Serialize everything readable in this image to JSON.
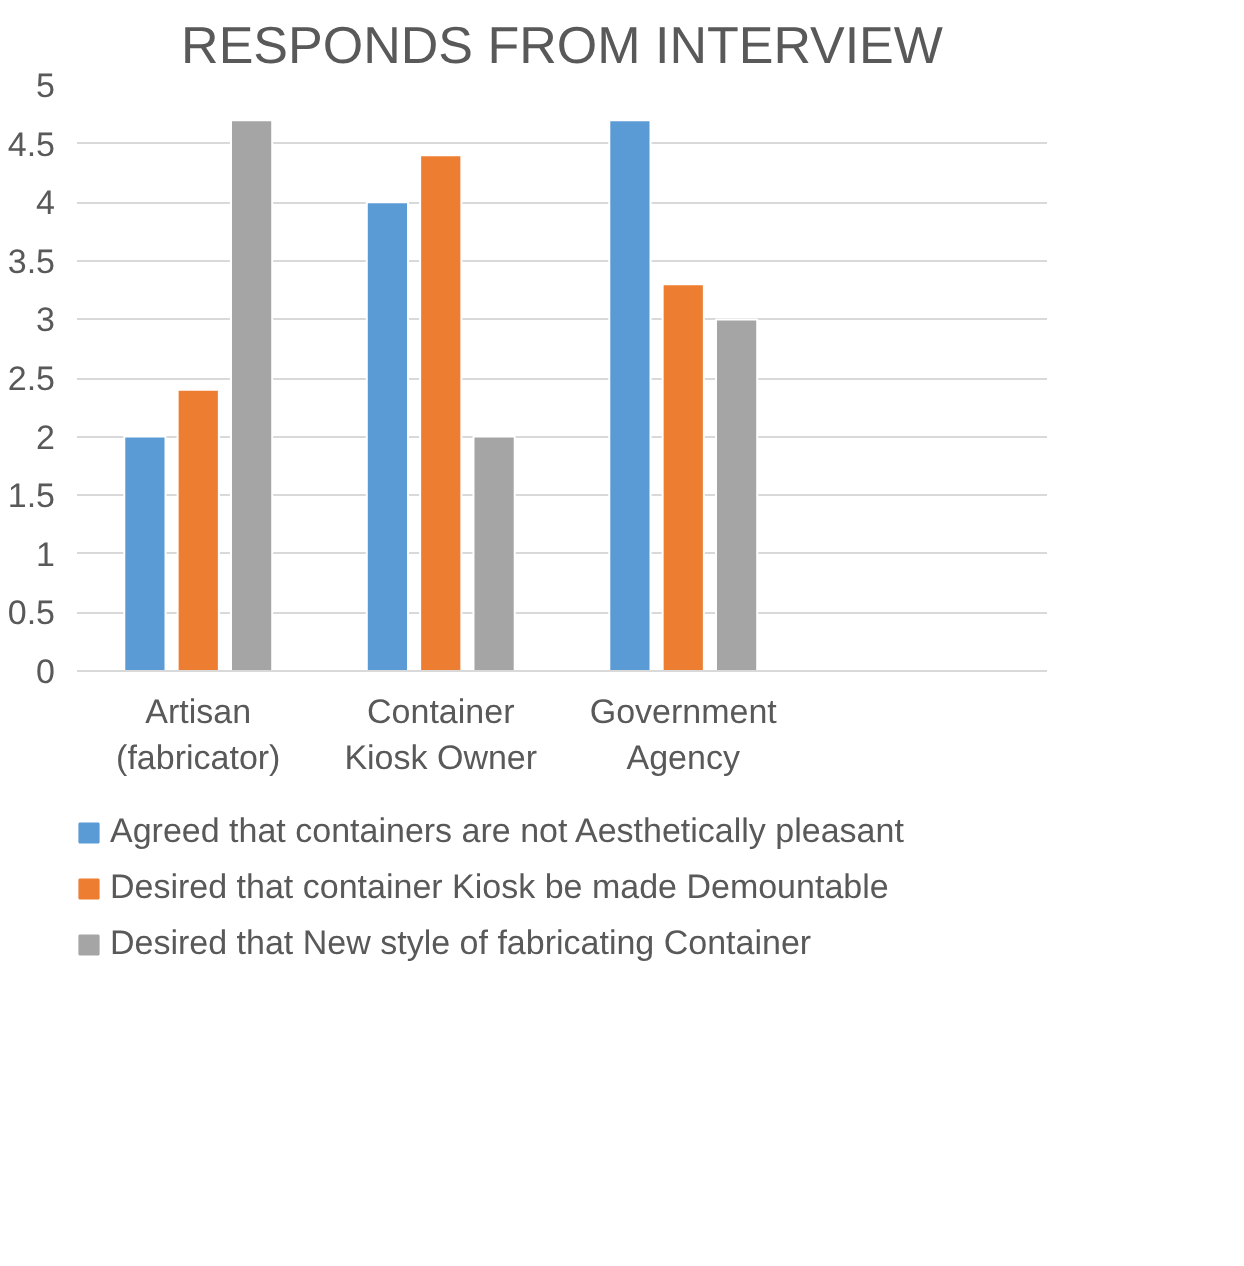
{
  "chart_data": {
    "type": "bar",
    "title": "RESPONDS FROM INTERVIEW",
    "categories": [
      "Artisan\n(fabricator)",
      "Container\nKiosk Owner",
      "Government\nAgency",
      null
    ],
    "series": [
      {
        "name": "Agreed that containers are not Aesthetically pleasant",
        "color": "#5b9bd5",
        "values": [
          2,
          4,
          4.7,
          null
        ]
      },
      {
        "name": "Desired that container Kiosk be made Demountable",
        "color": "#ed7d31",
        "values": [
          2.4,
          4.4,
          3.3,
          null
        ]
      },
      {
        "name": "Desired that New style of fabricating Container",
        "color": "#a5a5a5",
        "values": [
          4.7,
          2,
          3,
          null
        ]
      }
    ],
    "ylim": [
      0,
      5
    ],
    "yticks": [
      0,
      0.5,
      1,
      1.5,
      2,
      2.5,
      3,
      3.5,
      4,
      4.5,
      5
    ],
    "grid": "y",
    "legend": "bottom"
  }
}
